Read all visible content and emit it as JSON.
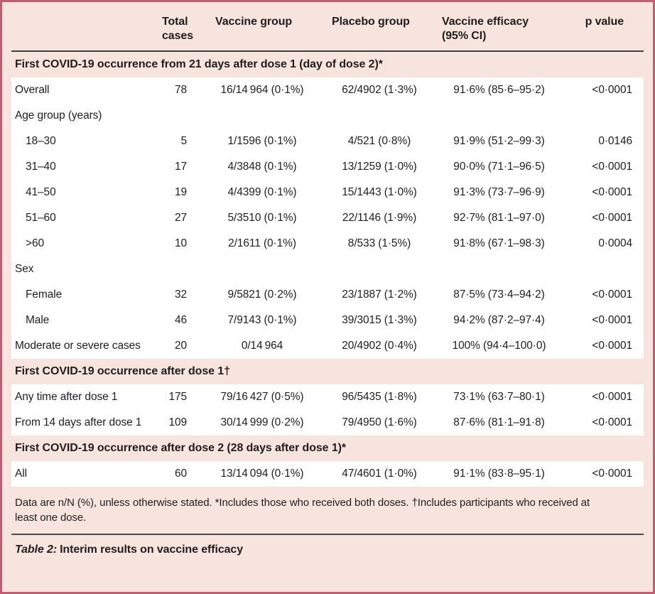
{
  "table": {
    "columns": {
      "total_cases": [
        "Total",
        "cases"
      ],
      "vaccine_group": "Vaccine group",
      "placebo_group": "Placebo group",
      "vaccine_efficacy": [
        "Vaccine efficacy",
        "(95% CI)"
      ],
      "p_value": "p value"
    },
    "sections": [
      {
        "header": "First COVID-19 occurrence from 21 days after dose 1 (day of dose 2)*",
        "rows": [
          {
            "label": "Overall",
            "total": "78",
            "vaccine": "16/14 964 (0·1%)",
            "placebo": "62/4902 (1·3%)",
            "efficacy": "91·6% (85·6–95·2)",
            "p": "<0·0001"
          },
          {
            "label": "Age group (years)"
          },
          {
            "label": "18–30",
            "total": "5",
            "vaccine": "1/1596 (0·1%)",
            "placebo": "4/521 (0·8%)",
            "efficacy": "91·9% (51·2–99·3)",
            "p": "0·0146"
          },
          {
            "label": "31–40",
            "total": "17",
            "vaccine": "4/3848 (0·1%)",
            "placebo": "13/1259 (1·0%)",
            "efficacy": "90·0% (71·1–96·5)",
            "p": "<0·0001"
          },
          {
            "label": "41–50",
            "total": "19",
            "vaccine": "4/4399 (0·1%)",
            "placebo": "15/1443 (1·0%)",
            "efficacy": "91·3% (73·7–96·9)",
            "p": "<0·0001"
          },
          {
            "label": "51–60",
            "total": "27",
            "vaccine": "5/3510 (0·1%)",
            "placebo": "22/1146 (1·9%)",
            "efficacy": "92·7% (81·1–97·0)",
            "p": "<0·0001"
          },
          {
            "label": ">60",
            "total": "10",
            "vaccine": "2/1611 (0·1%)",
            "placebo": "8/533 (1·5%)",
            "efficacy": "91·8% (67·1–98·3)",
            "p": "0·0004"
          },
          {
            "label": "Sex"
          },
          {
            "label": "Female",
            "total": "32",
            "vaccine": "9/5821 (0·2%)",
            "placebo": "23/1887 (1·2%)",
            "efficacy": "87·5% (73·4–94·2)",
            "p": "<0·0001"
          },
          {
            "label": "Male",
            "total": "46",
            "vaccine": "7/9143 (0·1%)",
            "placebo": "39/3015 (1·3%)",
            "efficacy": "94·2% (87·2–97·4)",
            "p": "<0·0001"
          },
          {
            "label": "Moderate or severe cases",
            "total": "20",
            "vaccine": "0/14 964",
            "placebo": "20/4902 (0·4%)",
            "efficacy": "100% (94·4–100·0)",
            "p": "<0·0001"
          }
        ]
      },
      {
        "header": "First COVID-19 occurrence after dose 1†",
        "rows": [
          {
            "label": "Any time after dose 1",
            "total": "175",
            "vaccine": "79/16 427 (0·5%)",
            "placebo": "96/5435 (1·8%)",
            "efficacy": "73·1% (63·7–80·1)",
            "p": "<0·0001"
          },
          {
            "label": "From 14 days after dose 1",
            "total": "109",
            "vaccine": "30/14 999 (0·2%)",
            "placebo": "79/4950 (1·6%)",
            "efficacy": "87·6% (81·1–91·8)",
            "p": "<0·0001"
          }
        ]
      },
      {
        "header": "First COVID-19 occurrence after dose 2 (28 days after dose 1)*",
        "rows": [
          {
            "label": "All",
            "total": "60",
            "vaccine": "13/14 094 (0·1%)",
            "placebo": "47/4601 (1·0%)",
            "efficacy": "91·1% (83·8–95·1)",
            "p": "<0·0001"
          }
        ]
      }
    ],
    "footnote": "Data are n/N (%), unless otherwise stated. *Includes those who received both doses. †Includes participants who received at least one dose.",
    "caption_prefix": "Table 2:",
    "caption_rest": "Interim results on vaccine efficacy"
  },
  "colors": {
    "frame_border": "#c05e73",
    "background_pink": "#f8e4df",
    "row_white": "#ffffff",
    "rule_dark": "#3f3f3f"
  }
}
